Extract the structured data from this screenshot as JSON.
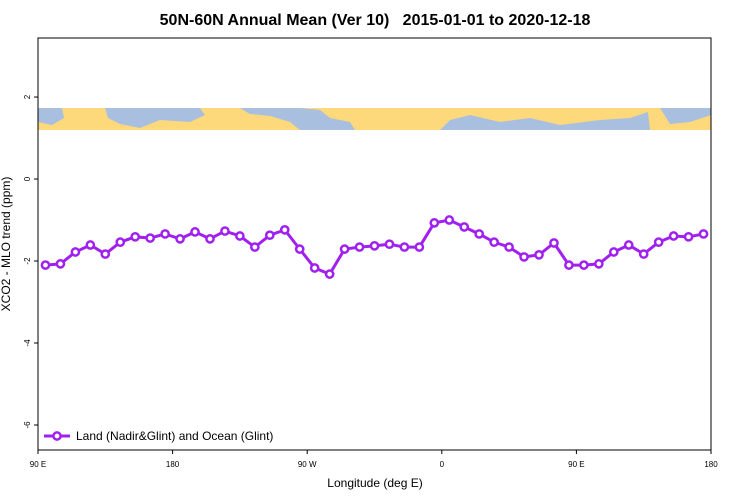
{
  "chart_data": {
    "type": "line",
    "title": "50N-60N Annual Mean (Ver 10)   2015-01-01 to 2020-12-18",
    "x_label": "Longitude (deg E)",
    "y_label": "XCO2 - MLO trend (ppm)",
    "x": [
      95,
      105,
      115,
      125,
      135,
      145,
      155,
      165,
      175,
      185,
      195,
      205,
      215,
      225,
      235,
      245,
      255,
      265,
      275,
      285,
      295,
      305,
      315,
      325,
      335,
      345,
      355,
      365,
      375,
      385,
      395,
      405,
      415,
      425,
      435,
      445,
      455,
      465,
      475,
      485,
      495,
      505,
      515,
      525,
      535
    ],
    "series": [
      {
        "name": "Land (Nadir&Glint) and Ocean (Glint)",
        "color": "#a020f0",
        "values": [
          -2.1,
          -2.07,
          -1.78,
          -1.61,
          -1.83,
          -1.54,
          -1.41,
          -1.44,
          -1.34,
          -1.46,
          -1.29,
          -1.46,
          -1.27,
          -1.39,
          -1.66,
          -1.37,
          -1.24,
          -1.71,
          -2.17,
          -2.32,
          -1.71,
          -1.66,
          -1.63,
          -1.59,
          -1.66,
          -1.66,
          -1.07,
          -1.0,
          -1.17,
          -1.34,
          -1.54,
          -1.66,
          -1.9,
          -1.85,
          -1.56,
          -2.1,
          -2.1,
          -2.07,
          -1.78,
          -1.61,
          -1.83,
          -1.54,
          -1.39,
          -1.41,
          -1.34
        ]
      }
    ],
    "xlim": [
      90,
      540
    ],
    "xticks": [
      {
        "value": 90,
        "label": "90 E"
      },
      180,
      {
        "value": 270,
        "label": "90 W"
      },
      {
        "value": 360,
        "label": "0"
      },
      {
        "value": 450,
        "label": "90 E"
      },
      {
        "value": 540,
        "label": "180"
      }
    ],
    "ylim": [
      -6.61,
      3.44
    ],
    "yticks": [
      -6,
      -4,
      -2,
      0,
      2
    ],
    "legend": "lower left"
  }
}
